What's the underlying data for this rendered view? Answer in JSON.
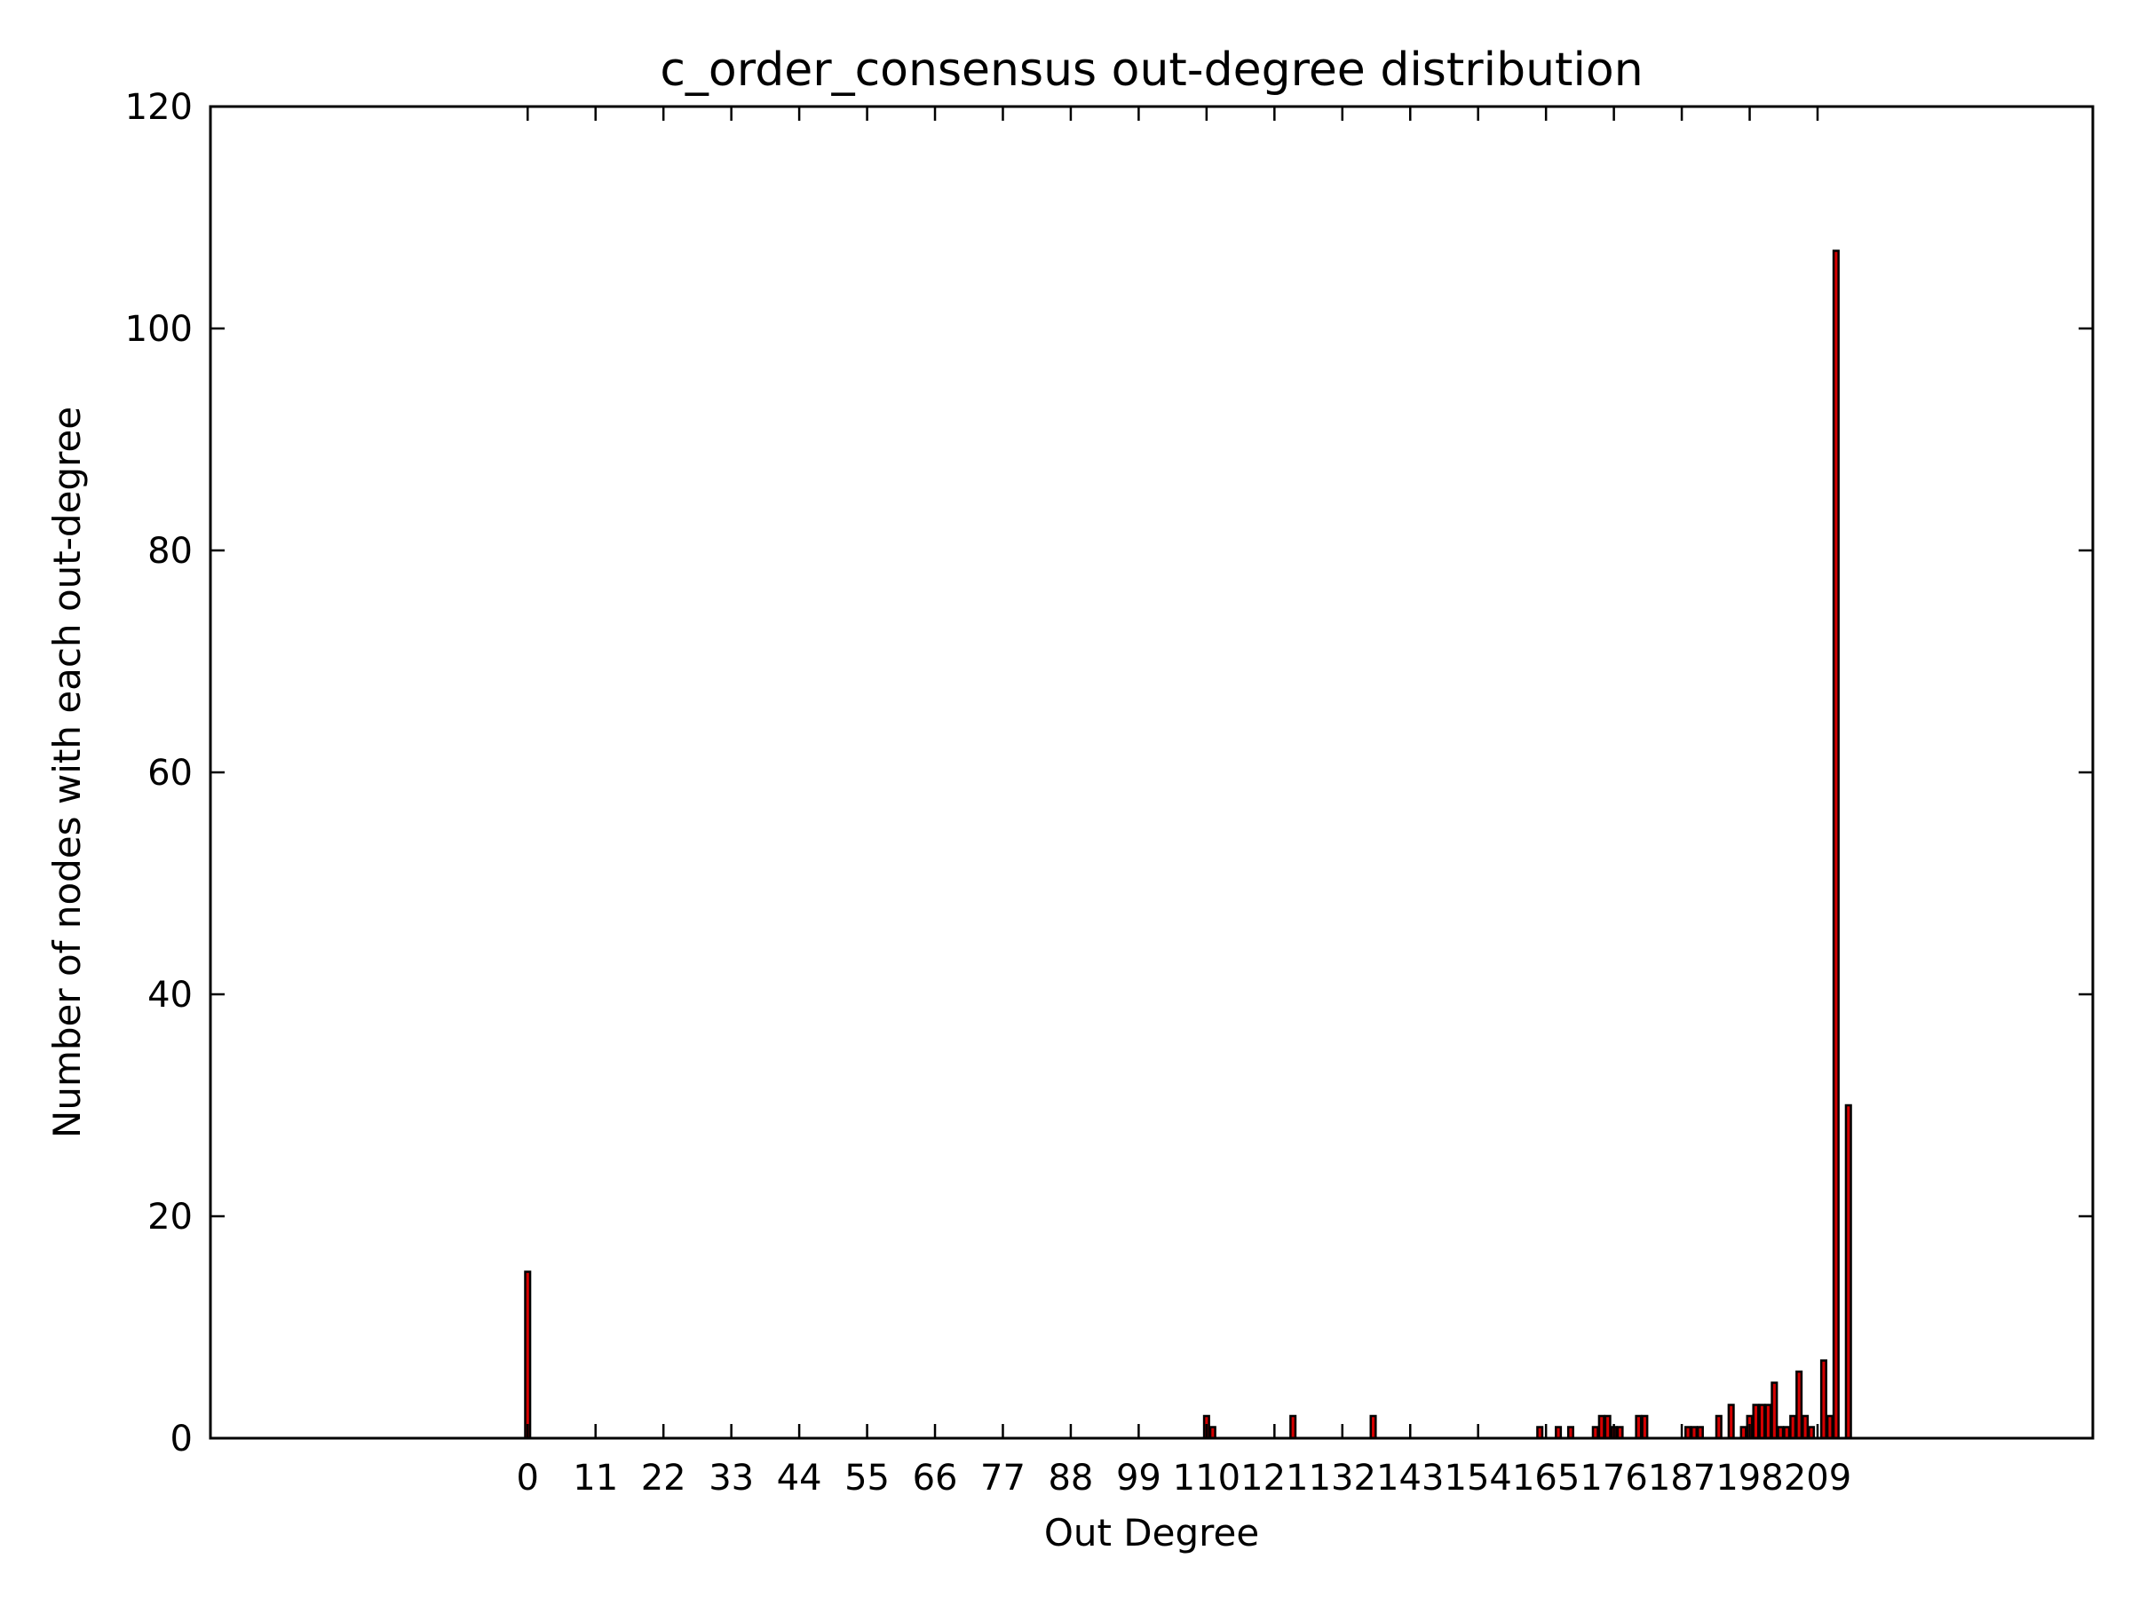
{
  "chart_data": {
    "type": "bar",
    "title": "c_order_consensus out-degree distribution",
    "xlabel": "Out Degree",
    "ylabel": "Number of nodes with each out-degree",
    "xlim": [
      -51,
      254
    ],
    "ylim": [
      0,
      120
    ],
    "xticks": [
      0,
      11,
      22,
      33,
      44,
      55,
      66,
      77,
      88,
      99,
      110,
      121,
      132,
      143,
      154,
      165,
      176,
      187,
      198,
      209
    ],
    "yticks": [
      0,
      20,
      40,
      60,
      80,
      100,
      120
    ],
    "grid": false,
    "bar_color": "#d40000",
    "bars": [
      {
        "x": 0,
        "value": 15
      },
      {
        "x": 110,
        "value": 2
      },
      {
        "x": 111,
        "value": 1
      },
      {
        "x": 124,
        "value": 2
      },
      {
        "x": 137,
        "value": 2
      },
      {
        "x": 164,
        "value": 1
      },
      {
        "x": 167,
        "value": 1
      },
      {
        "x": 169,
        "value": 1
      },
      {
        "x": 173,
        "value": 1
      },
      {
        "x": 174,
        "value": 2
      },
      {
        "x": 175,
        "value": 2
      },
      {
        "x": 176,
        "value": 1
      },
      {
        "x": 177,
        "value": 1
      },
      {
        "x": 180,
        "value": 2
      },
      {
        "x": 181,
        "value": 2
      },
      {
        "x": 188,
        "value": 1
      },
      {
        "x": 189,
        "value": 1
      },
      {
        "x": 190,
        "value": 1
      },
      {
        "x": 193,
        "value": 2
      },
      {
        "x": 195,
        "value": 3
      },
      {
        "x": 197,
        "value": 1
      },
      {
        "x": 198,
        "value": 2
      },
      {
        "x": 199,
        "value": 3
      },
      {
        "x": 200,
        "value": 3
      },
      {
        "x": 201,
        "value": 3
      },
      {
        "x": 202,
        "value": 5
      },
      {
        "x": 203,
        "value": 1
      },
      {
        "x": 204,
        "value": 1
      },
      {
        "x": 205,
        "value": 2
      },
      {
        "x": 206,
        "value": 6
      },
      {
        "x": 207,
        "value": 2
      },
      {
        "x": 208,
        "value": 1
      },
      {
        "x": 210,
        "value": 7
      },
      {
        "x": 211,
        "value": 2
      },
      {
        "x": 212,
        "value": 107
      },
      {
        "x": 214,
        "value": 30
      }
    ]
  }
}
